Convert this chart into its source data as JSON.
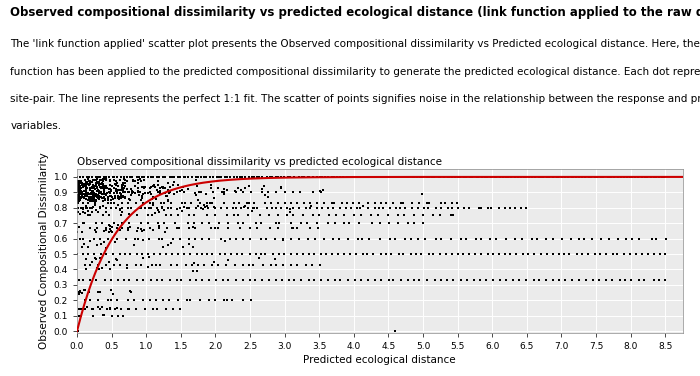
{
  "title_main": "Observed compositional dissimilarity vs predicted ecological distance (link function applied to the raw data plot):",
  "description_lines": [
    "The 'link function applied' scatter plot presents the Observed compositional dissimilarity vs Predicted ecological distance. Here, the link",
    "function has been applied to the predicted compositional dissimilarity to generate the predicted ecological distance. Each dot represents a",
    "site-pair. The line represents the perfect 1:1 fit. The scatter of points signifies noise in the relationship between the response and predictor",
    "variables."
  ],
  "plot_title": "Observed compositional dissimilarity vs predicted ecological distance",
  "xlabel": "Predicted ecological distance",
  "ylabel": "Observed Compositional Dissimilarity",
  "xlim": [
    0.0,
    8.75
  ],
  "ylim": [
    -0.01,
    1.05
  ],
  "xticks": [
    0.0,
    0.5,
    1.0,
    1.5,
    2.0,
    2.5,
    3.0,
    3.5,
    4.0,
    4.5,
    5.0,
    5.5,
    6.0,
    6.5,
    7.0,
    7.5,
    8.0,
    8.5
  ],
  "yticks": [
    0.0,
    0.1,
    0.2,
    0.3,
    0.4,
    0.5,
    0.6,
    0.7,
    0.8,
    0.9,
    1.0
  ],
  "scatter_color": "#000000",
  "scatter_size": 3,
  "scatter_marker": "s",
  "curve_color": "#cc0000",
  "curve_linewidth": 1.5,
  "curve_k": 1.8,
  "background_color": "#ffffff",
  "plot_bg_color": "#ebebeb",
  "grid_color": "#ffffff",
  "title_fontsize": 8.5,
  "desc_fontsize": 7.5,
  "plot_title_fontsize": 7.5,
  "axis_label_fontsize": 7.5,
  "tick_fontsize": 6.5,
  "font_family": "DejaVu Sans"
}
